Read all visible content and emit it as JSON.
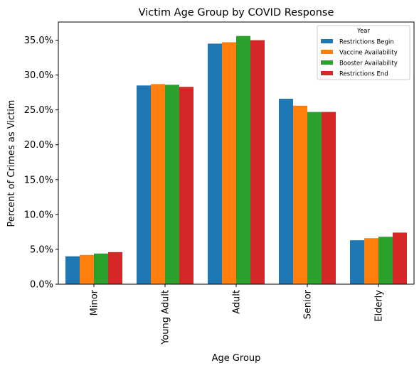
{
  "chart_data": {
    "type": "bar",
    "title": "Victim Age Group by COVID Response",
    "xlabel": "Age Group",
    "ylabel": "Percent of Crimes as Victim",
    "categories": [
      "Minor",
      "Young Adult",
      "Adult",
      "Senior",
      "Elderly"
    ],
    "ylim": [
      0,
      37.6
    ],
    "yticks": [
      0,
      5,
      10,
      15,
      20,
      25,
      30,
      35
    ],
    "ytick_labels": [
      "0.0%",
      "5.0%",
      "10.0%",
      "15.0%",
      "20.0%",
      "25.0%",
      "30.0%",
      "35.0%"
    ],
    "legend": {
      "title": "Year",
      "placement": "top-right"
    },
    "series": [
      {
        "name": "Restrictions Begin",
        "color": "#1f77b4",
        "values": [
          4.0,
          28.5,
          34.5,
          26.6,
          6.3
        ]
      },
      {
        "name": "Vaccine Availability",
        "color": "#ff7f0e",
        "values": [
          4.2,
          28.7,
          34.7,
          25.6,
          6.6
        ]
      },
      {
        "name": "Booster Availability",
        "color": "#2ca02c",
        "values": [
          4.4,
          28.6,
          35.6,
          24.7,
          6.8
        ]
      },
      {
        "name": "Restrictions End",
        "color": "#d62728",
        "values": [
          4.6,
          28.3,
          35.0,
          24.7,
          7.4
        ]
      }
    ],
    "grid": false
  }
}
